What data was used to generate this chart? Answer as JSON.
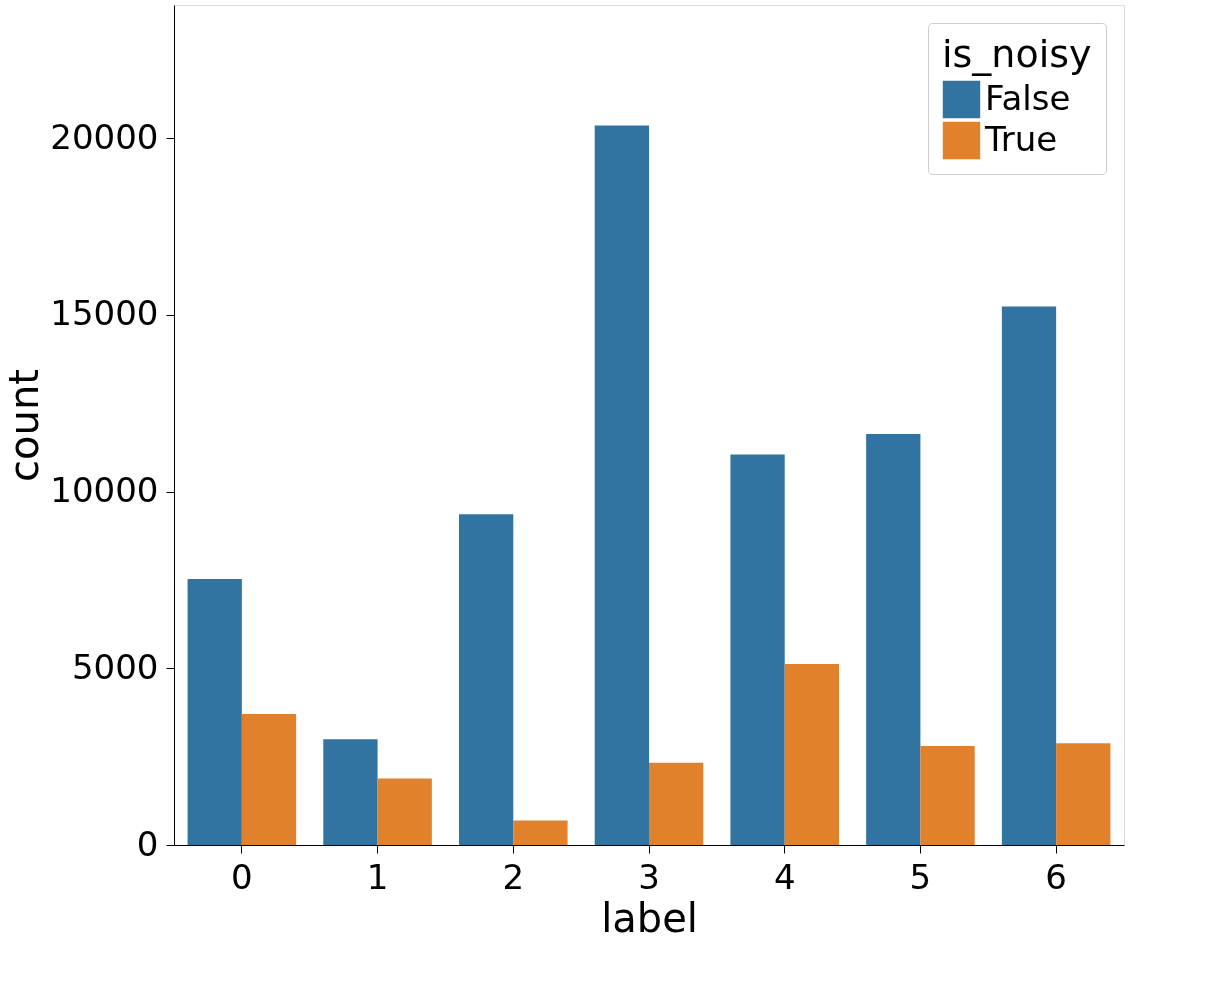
{
  "chart_data": {
    "type": "bar",
    "xlabel": "label",
    "ylabel": "count",
    "legend_title": "is_noisy",
    "categories": [
      "0",
      "1",
      "2",
      "3",
      "4",
      "5",
      "6"
    ],
    "series": [
      {
        "name": "False",
        "color": "#3274a1",
        "values": [
          7530,
          2990,
          9360,
          20360,
          11050,
          11630,
          15240
        ]
      },
      {
        "name": "True",
        "color": "#e1812c",
        "values": [
          3710,
          1880,
          690,
          2330,
          5120,
          2800,
          2880
        ]
      }
    ],
    "ylim": [
      0,
      23770
    ],
    "yticks": [
      0,
      5000,
      10000,
      15000,
      20000
    ],
    "grid": false,
    "legend": "top right"
  }
}
